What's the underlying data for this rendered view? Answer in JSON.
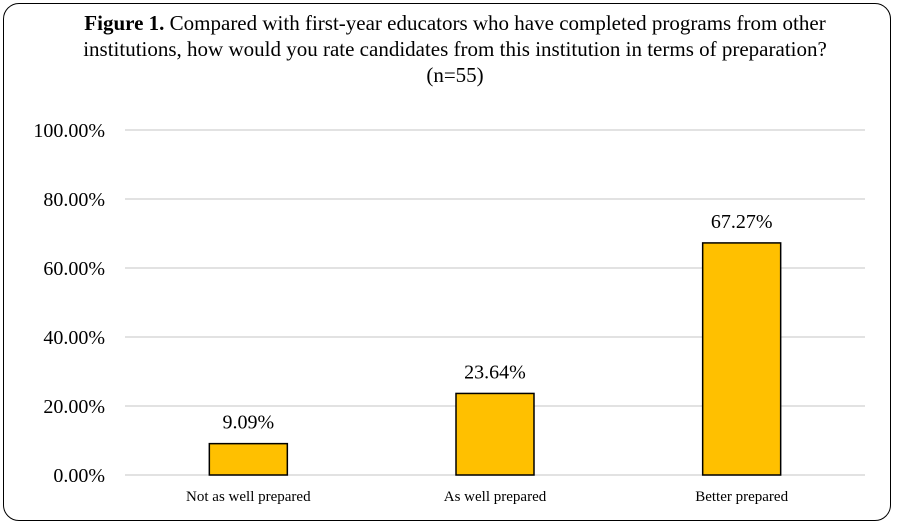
{
  "chart_data": {
    "type": "bar",
    "title_bold": "Figure 1.",
    "title": "Compared with first-year educators who have completed programs from other institutions, how would you rate candidates from this institution in terms of preparation? (n=55)",
    "categories": [
      "Not as well prepared",
      "As well prepared",
      "Better prepared"
    ],
    "values": [
      9.09,
      23.64,
      67.27
    ],
    "data_labels": [
      "9.09%",
      "23.64%",
      "67.27%"
    ],
    "xlabel": "",
    "ylabel": "",
    "ylim": [
      0,
      100
    ],
    "yticks": [
      0,
      20,
      40,
      60,
      80,
      100
    ],
    "ytick_labels": [
      "0.00%",
      "20.00%",
      "40.00%",
      "60.00%",
      "80.00%",
      "100.00%"
    ],
    "grid": true,
    "legend": "none",
    "bar_color": "#FFC000",
    "bar_edge_color": "#000000",
    "grid_color": "#D9D9D9"
  }
}
